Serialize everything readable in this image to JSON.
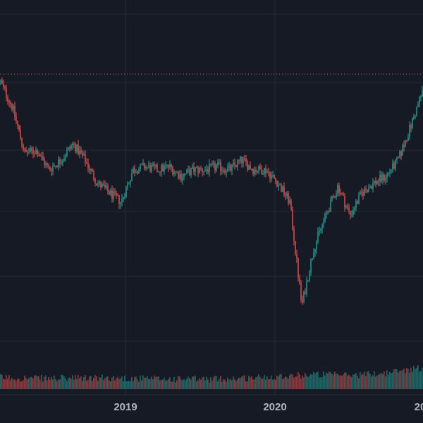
{
  "colors": {
    "background": "#161a25",
    "grid": "#262a36",
    "up": "#26a69a",
    "down": "#ef5350",
    "price_line": "#ef5350",
    "axis_text": "#b2b5be"
  },
  "chart_data": {
    "type": "candlestick",
    "title": "",
    "xlabel": "",
    "ylabel": "",
    "grid": true,
    "x_tick_labels": [
      "2019",
      "2020",
      "20"
    ],
    "series": [
      {
        "kind": "price",
        "x": [
          "2018-02",
          "2018-03",
          "2018-04",
          "2018-05",
          "2018-06",
          "2018-07",
          "2018-08",
          "2018-09",
          "2018-10",
          "2018-11",
          "2018-12",
          "2019-01",
          "2019-02",
          "2019-03",
          "2019-04",
          "2019-05",
          "2019-06",
          "2019-07",
          "2019-08",
          "2019-09",
          "2019-10",
          "2019-11",
          "2019-12",
          "2020-01",
          "2020-02",
          "2020-03",
          "2020-04",
          "2020-05",
          "2020-06",
          "2020-07",
          "2020-08",
          "2020-09",
          "2020-10",
          "2020-11",
          "2020-12",
          "2021-01"
        ],
        "values": [
          0.79,
          0.71,
          0.57,
          0.58,
          0.52,
          0.55,
          0.6,
          0.55,
          0.48,
          0.45,
          0.42,
          0.52,
          0.53,
          0.52,
          0.53,
          0.5,
          0.52,
          0.52,
          0.53,
          0.52,
          0.55,
          0.52,
          0.52,
          0.48,
          0.42,
          0.1,
          0.28,
          0.38,
          0.47,
          0.38,
          0.45,
          0.48,
          0.5,
          0.55,
          0.65,
          0.76
        ]
      },
      {
        "kind": "volume",
        "x": [
          "2018-02",
          "2018-05",
          "2018-08",
          "2018-11",
          "2019-02",
          "2019-05",
          "2019-08",
          "2019-11",
          "2020-02",
          "2020-05",
          "2020-08",
          "2020-11",
          "2021-01"
        ],
        "values": [
          0.25,
          0.2,
          0.2,
          0.22,
          0.18,
          0.15,
          0.15,
          0.22,
          0.35,
          0.45,
          0.4,
          0.55,
          0.9
        ]
      }
    ],
    "price_line_level": 0.815
  }
}
